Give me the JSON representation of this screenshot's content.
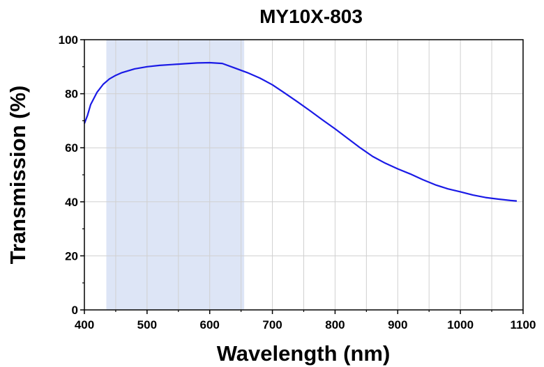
{
  "chart_data": {
    "type": "line",
    "title": "MY10X-803",
    "xlabel": "Wavelength (nm)",
    "ylabel": "Transmission (%)",
    "xlim": [
      400,
      1100
    ],
    "ylim": [
      0,
      100
    ],
    "x_ticks": [
      400,
      500,
      600,
      700,
      800,
      900,
      1000,
      1100
    ],
    "y_ticks": [
      0,
      20,
      40,
      60,
      80,
      100
    ],
    "grid": true,
    "legend": "none",
    "colors": {
      "line": "#1a1ae6",
      "band": "#dde5f6",
      "grid": "#d0d0d0"
    },
    "highlight_band": {
      "x_start": 435,
      "x_end": 655
    },
    "series": [
      {
        "x": [
          400,
          405,
          410,
          420,
          430,
          440,
          450,
          460,
          480,
          500,
          520,
          540,
          560,
          580,
          600,
          620,
          640,
          660,
          680,
          700,
          720,
          740,
          760,
          780,
          800,
          820,
          840,
          860,
          880,
          900,
          920,
          940,
          960,
          980,
          1000,
          1020,
          1040,
          1060,
          1080,
          1090
        ],
        "y": [
          69,
          72,
          76,
          80.5,
          83.5,
          85.5,
          86.8,
          87.8,
          89.2,
          90,
          90.5,
          90.8,
          91.1,
          91.4,
          91.5,
          91.2,
          89.5,
          87.8,
          85.8,
          83.3,
          80.2,
          77,
          73.7,
          70.3,
          67,
          63.5,
          60,
          56.8,
          54.3,
          52.2,
          50.3,
          48.2,
          46.3,
          44.8,
          43.7,
          42.5,
          41.6,
          41,
          40.5,
          40.3
        ]
      }
    ]
  }
}
